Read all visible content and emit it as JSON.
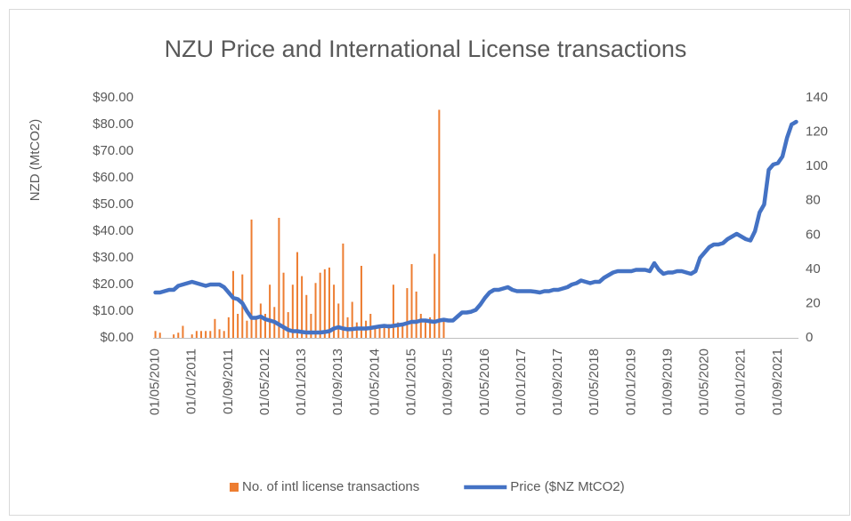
{
  "chart_data": {
    "type": "bar_line_combo",
    "title": "NZU Price and International License transactions",
    "y_label": "NZD (MtCO2)",
    "categories": [
      "01/05/2010",
      null,
      null,
      null,
      null,
      null,
      null,
      null,
      "01/01/2011",
      null,
      null,
      null,
      null,
      null,
      null,
      null,
      "01/09/2011",
      null,
      null,
      null,
      null,
      null,
      null,
      null,
      "01/05/2012",
      null,
      null,
      null,
      null,
      null,
      null,
      null,
      "01/01/2013",
      null,
      null,
      null,
      null,
      null,
      null,
      null,
      "01/09/2013",
      null,
      null,
      null,
      null,
      null,
      null,
      null,
      "01/05/2014",
      null,
      null,
      null,
      null,
      null,
      null,
      null,
      "01/01/2015",
      null,
      null,
      null,
      null,
      null,
      null,
      null,
      "01/09/2015",
      null,
      null,
      null,
      null,
      null,
      null,
      null,
      "01/05/2016",
      null,
      null,
      null,
      null,
      null,
      null,
      null,
      "01/01/2017",
      null,
      null,
      null,
      null,
      null,
      null,
      null,
      "01/09/2017",
      null,
      null,
      null,
      null,
      null,
      null,
      null,
      "01/05/2018",
      null,
      null,
      null,
      null,
      null,
      null,
      null,
      "01/01/2019",
      null,
      null,
      null,
      null,
      null,
      null,
      null,
      "01/09/2019",
      null,
      null,
      null,
      null,
      null,
      null,
      null,
      "01/05/2020",
      null,
      null,
      null,
      null,
      null,
      null,
      null,
      "01/01/2021",
      null,
      null,
      null,
      null,
      null,
      null,
      null,
      "01/09/2021",
      null,
      null,
      null,
      null
    ],
    "series": [
      {
        "name": "No. of intl license transactions",
        "type": "bar",
        "axis": "y2",
        "color": "#ed7d31",
        "values": [
          4,
          3,
          0,
          0,
          2,
          3,
          7,
          0,
          2,
          4,
          4,
          4,
          4,
          11,
          5,
          4,
          12,
          39,
          14,
          37,
          10,
          69,
          12,
          20,
          14,
          31,
          18,
          70,
          38,
          15,
          31,
          50,
          36,
          25,
          14,
          32,
          38,
          40,
          41,
          31,
          20,
          55,
          12,
          21,
          9,
          42,
          10,
          14,
          6,
          6,
          7,
          8,
          31,
          9,
          8,
          29,
          43,
          27,
          14,
          10,
          12,
          49,
          133,
          10,
          0,
          0,
          0,
          0,
          0,
          0,
          0,
          0,
          0,
          0,
          0,
          0,
          0,
          0,
          0,
          0,
          0,
          0,
          0,
          0,
          0,
          0,
          0,
          0,
          0,
          0,
          0,
          0,
          0,
          0,
          0,
          0,
          0,
          0,
          0,
          0,
          0,
          0,
          0,
          0,
          0,
          0,
          0,
          0,
          0,
          0,
          0,
          0,
          0,
          0,
          0,
          0,
          0,
          0,
          0,
          0,
          0,
          0,
          0,
          0,
          0,
          0,
          0,
          0,
          0,
          0,
          0,
          0,
          0,
          0,
          0,
          0,
          0,
          0,
          0,
          0,
          0
        ]
      },
      {
        "name": "Price ($NZ MtCO2)",
        "type": "line",
        "color": "#4472c4",
        "values": [
          17,
          17,
          17.5,
          18,
          18,
          19.5,
          20,
          20.5,
          21,
          20.5,
          20,
          19.5,
          20,
          20,
          20,
          19,
          17,
          15,
          14.5,
          13,
          10,
          7.5,
          7.5,
          8,
          7,
          6.5,
          6,
          5,
          4,
          3,
          2.5,
          2.5,
          2.2,
          2,
          2,
          2,
          2,
          2.2,
          2.5,
          3.5,
          4,
          3.5,
          3.2,
          3.3,
          3.5,
          3.5,
          3.5,
          3.7,
          4,
          4.3,
          4.5,
          4.3,
          4.5,
          4.8,
          5,
          5.5,
          6,
          6,
          6.5,
          6.5,
          6.2,
          6,
          6.5,
          6.8,
          6.5,
          6.5,
          8,
          9.5,
          9.5,
          9.8,
          10.5,
          12.5,
          15,
          17,
          18,
          18,
          18.5,
          19,
          18,
          17.5,
          17.5,
          17.5,
          17.5,
          17.3,
          17,
          17.5,
          17.5,
          18,
          18,
          18.5,
          19,
          20,
          20.5,
          21.5,
          21,
          20.5,
          21,
          21,
          22.5,
          23.5,
          24.5,
          25,
          25,
          25,
          25,
          25.5,
          25.5,
          25.5,
          25,
          28,
          25.5,
          24,
          24.5,
          24.5,
          25,
          25,
          24.5,
          24,
          25,
          30,
          32,
          34,
          35,
          35,
          35.5,
          37,
          38,
          39,
          38,
          37,
          36.5,
          40,
          47,
          50,
          63,
          65,
          65.5,
          68,
          75,
          80,
          81
        ]
      }
    ],
    "ylim": [
      0,
      90
    ],
    "yticks": [
      {
        "value": 0,
        "label": "$0.00"
      },
      {
        "value": 10,
        "label": "$10.00"
      },
      {
        "value": 20,
        "label": "$20.00"
      },
      {
        "value": 30,
        "label": "$30.00"
      },
      {
        "value": 40,
        "label": "$40.00"
      },
      {
        "value": 50,
        "label": "$50.00"
      },
      {
        "value": 60,
        "label": "$60.00"
      },
      {
        "value": 70,
        "label": "$70.00"
      },
      {
        "value": 80,
        "label": "$80.00"
      },
      {
        "value": 90,
        "label": "$90.00"
      }
    ],
    "y2lim": [
      0,
      140
    ],
    "y2ticks": [
      0,
      20,
      40,
      60,
      80,
      100,
      120,
      140
    ],
    "legend": "bottom"
  }
}
